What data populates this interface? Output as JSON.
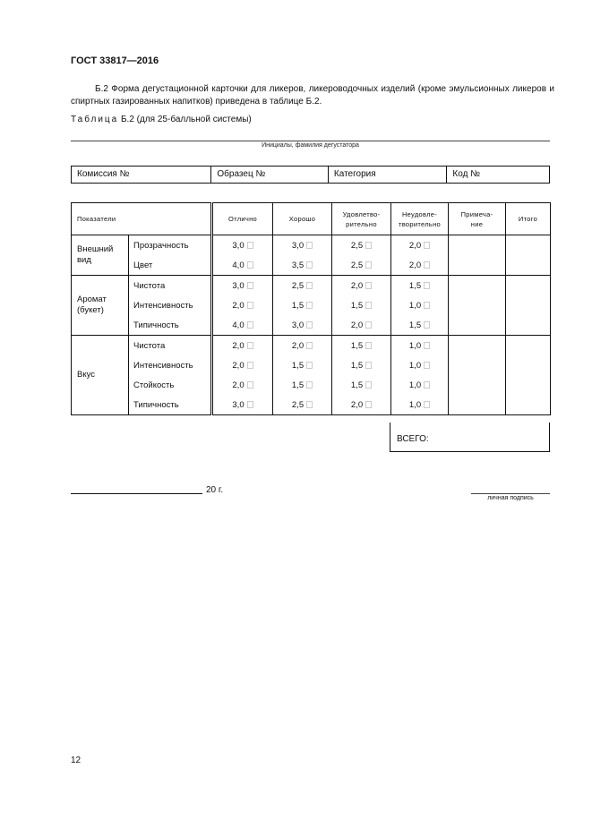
{
  "header": {
    "standard": "ГОСТ 33817—2016"
  },
  "paragraph": "Б.2 Форма дегустационной карточки для ликеров, ликероводочных изделий (кроме эмульсионных ликеров и спиртных газированных напитков) приведена в таблице Б.2.",
  "caption": {
    "word": "Таблица",
    "rest": " Б.2 (для 25-балльной системы)"
  },
  "taster_label": "Инициалы, фамилия дегустатора",
  "info": [
    "Комиссия №",
    "Образец №",
    "Категория",
    "Код №"
  ],
  "table": {
    "headers": [
      "Показатели",
      "Отлично",
      "Хорошо",
      "Удовлетво-\nрительно",
      "Неудовле-\nтворительно",
      "Примеча-\nние",
      "Итого"
    ],
    "groups": [
      {
        "name": "Внешний вид",
        "rows": [
          {
            "indicator": "Прозрачность",
            "scores": [
              "3,0",
              "3,0",
              "2,5",
              "2,0"
            ]
          },
          {
            "indicator": "Цвет",
            "scores": [
              "4,0",
              "3,5",
              "2,5",
              "2,0"
            ]
          }
        ]
      },
      {
        "name": "Аромат (букет)",
        "rows": [
          {
            "indicator": "Чистота",
            "scores": [
              "3,0",
              "2,5",
              "2,0",
              "1,5"
            ]
          },
          {
            "indicator": "Интенсивность",
            "scores": [
              "2,0",
              "1,5",
              "1,5",
              "1,0"
            ]
          },
          {
            "indicator": "Типичность",
            "scores": [
              "4,0",
              "3,0",
              "2,0",
              "1,5"
            ]
          }
        ]
      },
      {
        "name": "Вкус",
        "rows": [
          {
            "indicator": "Чистота",
            "scores": [
              "2,0",
              "2,0",
              "1,5",
              "1,0"
            ]
          },
          {
            "indicator": "Интенсивность",
            "scores": [
              "2,0",
              "1,5",
              "1,5",
              "1,0"
            ]
          },
          {
            "indicator": "Стойкость",
            "scores": [
              "2,0",
              "1,5",
              "1,5",
              "1,0"
            ]
          },
          {
            "indicator": "Типичность",
            "scores": [
              "3,0",
              "2,5",
              "2,0",
              "1,0"
            ]
          }
        ]
      }
    ],
    "total_label": "ВСЕГО:"
  },
  "date_suffix": "20 г.",
  "signature_label": "личная подпись",
  "page_number": "12"
}
